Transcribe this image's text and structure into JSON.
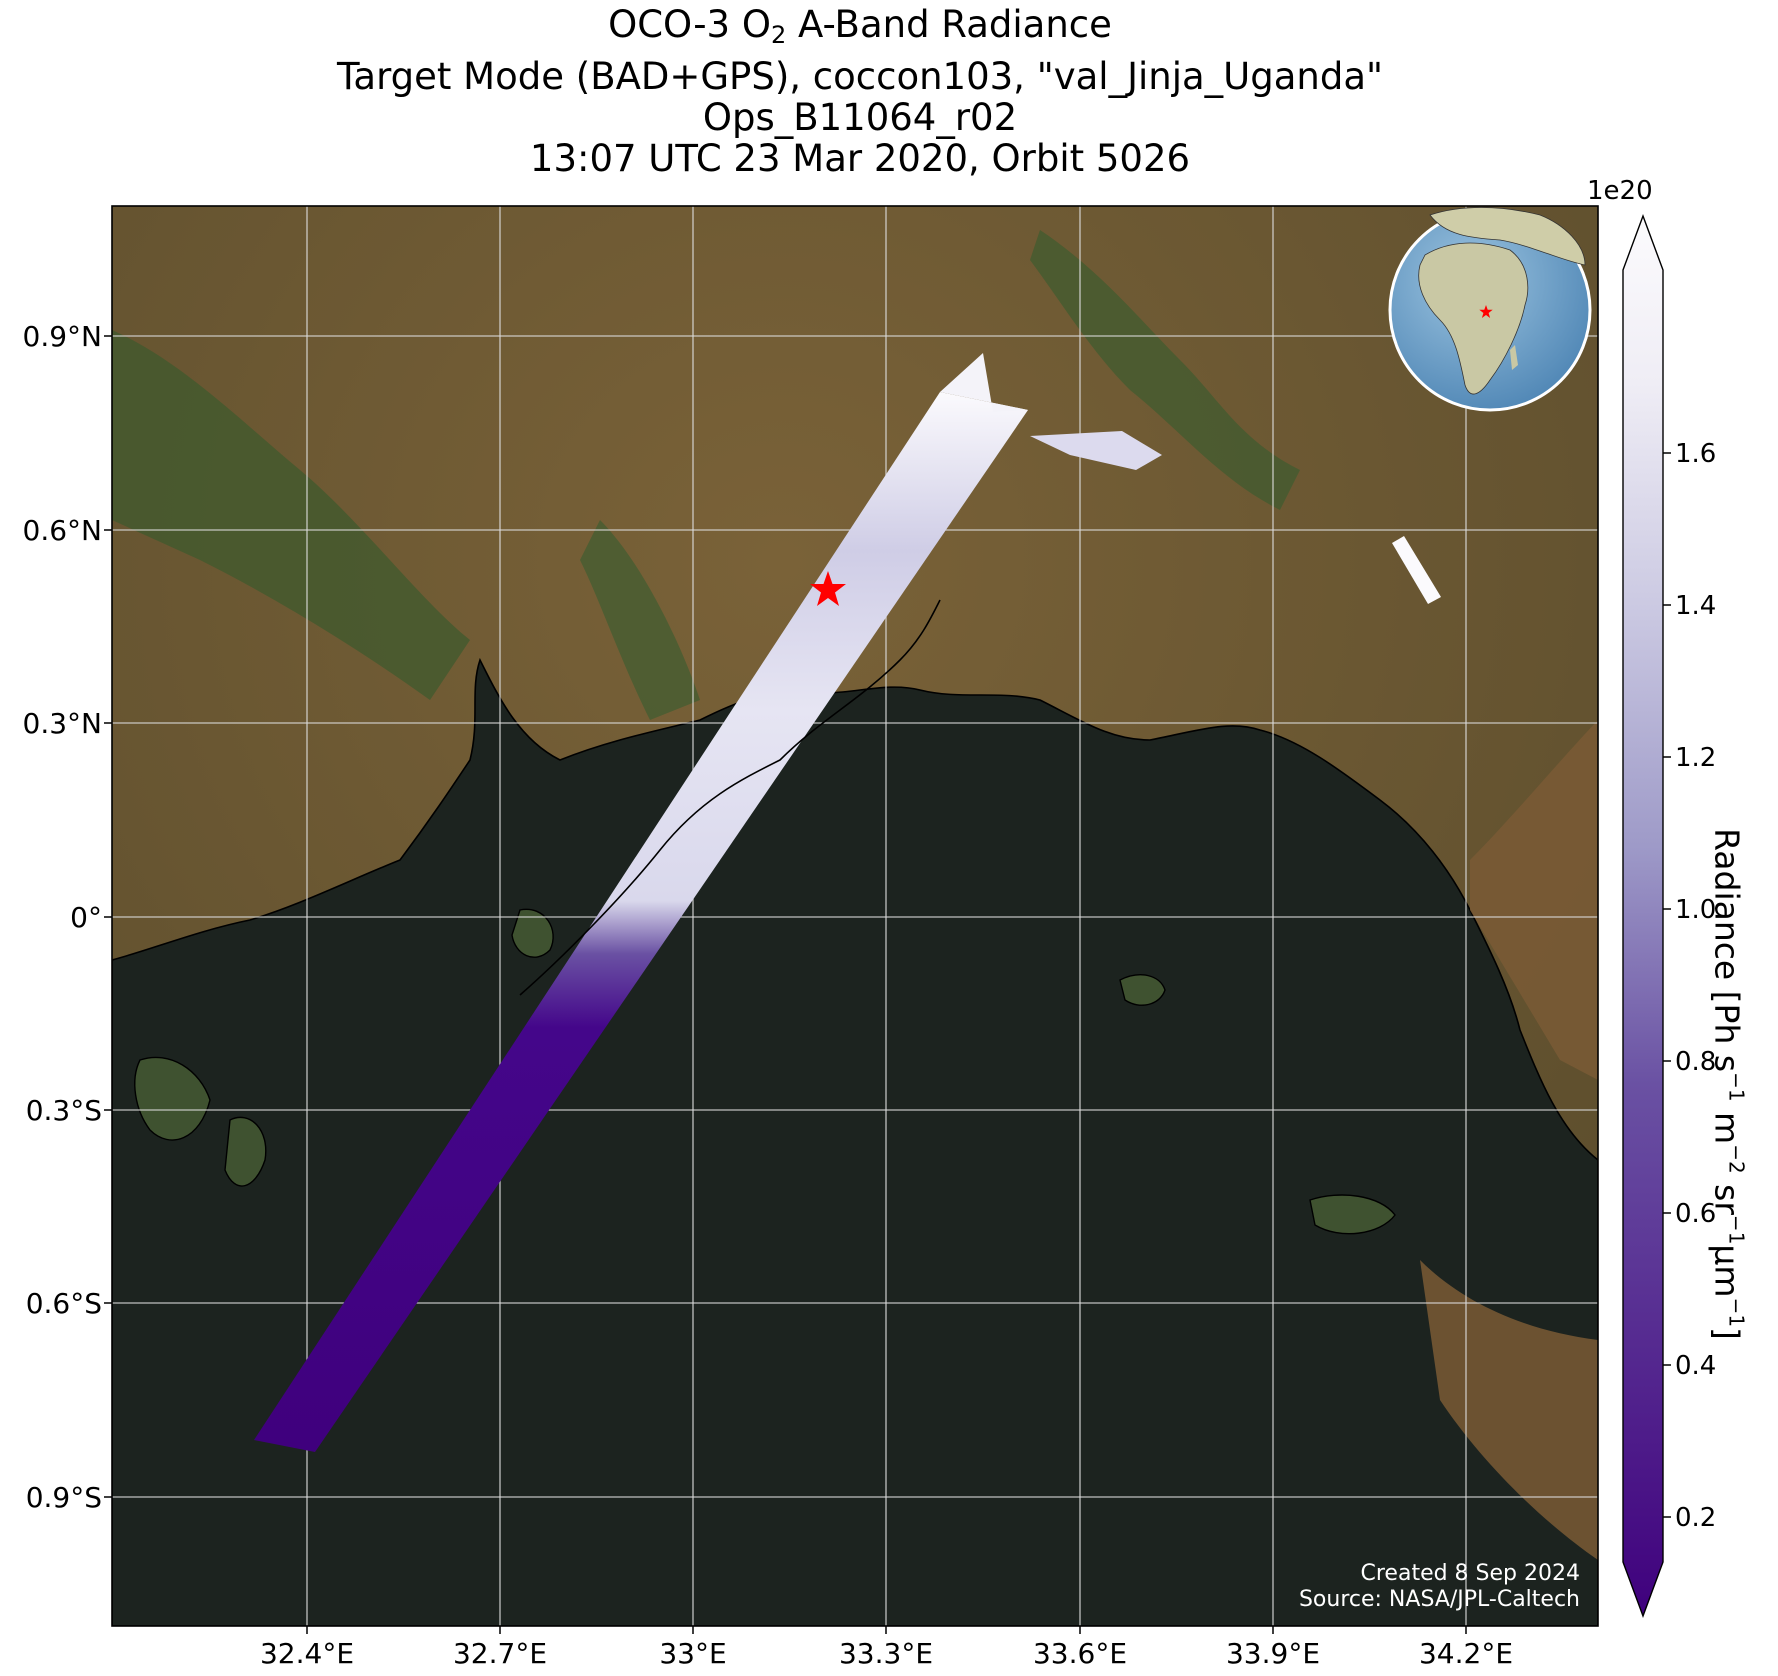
{
  "title": {
    "line1_prefix": "OCO-3 O",
    "line1_sub": "2",
    "line1_suffix": " A-Band Radiance",
    "line2": "Target Mode (BAD+GPS), coccon103, \"val_Jinja_Uganda\"",
    "line3": "Ops_B11064_r02",
    "line4": "13:07 UTC 23 Mar 2020, Orbit 5026"
  },
  "colorbar": {
    "label_parts": [
      "Radiance [Ph s",
      "−1",
      " m",
      "−2",
      " sr",
      "−1",
      "μm",
      "−1",
      "]"
    ],
    "exponent": "1e20",
    "ticks": [
      "0.2",
      "0.4",
      "0.6",
      "0.8",
      "1.0",
      "1.2",
      "1.4",
      "1.6"
    ],
    "tick_values": [
      0.2,
      0.4,
      0.6,
      0.8,
      1.0,
      1.2,
      1.4,
      1.6
    ],
    "range": [
      0.1,
      1.8
    ],
    "colormap": "Purples_r",
    "extend": "both"
  },
  "map": {
    "lon_ticks": [
      "32.4°E",
      "32.7°E",
      "33°E",
      "33.3°E",
      "33.6°E",
      "33.9°E",
      "34.2°E"
    ],
    "lat_ticks": [
      "0.9°N",
      "0.6°N",
      "0.3°N",
      "0°",
      "0.3°S",
      "0.6°S",
      "0.9°S"
    ],
    "lon_values": [
      32.4,
      32.7,
      33.0,
      33.3,
      33.6,
      33.9,
      34.2
    ],
    "lat_values": [
      0.9,
      0.6,
      0.3,
      0.0,
      -0.3,
      -0.6,
      -0.9
    ],
    "lon_range": [
      32.09,
      34.41
    ],
    "lat_range": [
      -1.1,
      1.1
    ],
    "grid": true,
    "target_marker": {
      "lon": 33.21,
      "lat": 0.51,
      "symbol": "star",
      "color": "#ff0000"
    },
    "inset_globe": {
      "position": "top-right",
      "marker_color": "#ff0000"
    },
    "colors": {
      "land": "#6b5a36",
      "water": "#1e241f",
      "swath_low": "#3f007d",
      "swath_high": "#fcfbfd",
      "gridline": "#dcdcdc"
    }
  },
  "credits": {
    "line1": "Created 8 Sep 2024",
    "line2": "Source: NASA/JPL-Caltech"
  }
}
